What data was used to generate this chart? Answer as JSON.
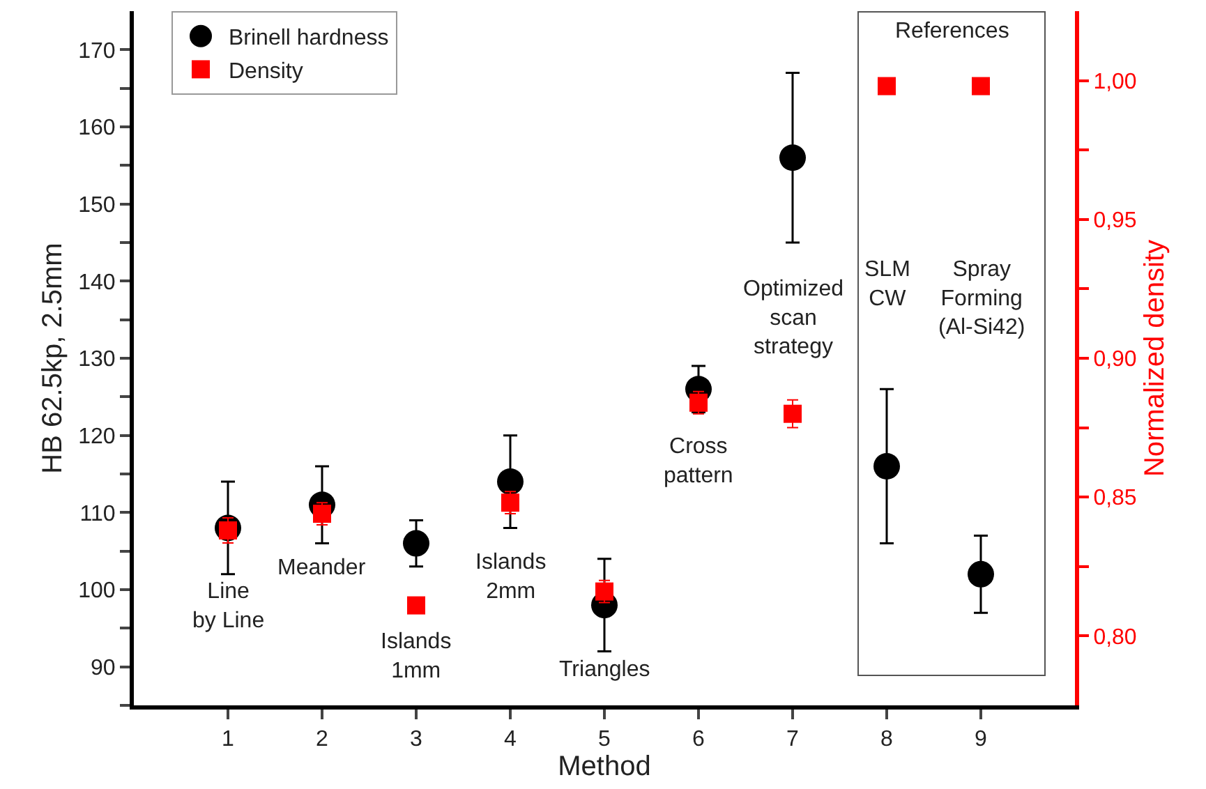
{
  "chart_data": {
    "type": "scatter",
    "xlabel": "Method",
    "ylabel": "HB 62.5kp, 2.5mm",
    "y2label": "Normalized density",
    "x": [
      1,
      2,
      3,
      4,
      5,
      6,
      7,
      8,
      9
    ],
    "series": [
      {
        "name": "Brinell hardness",
        "color": "#000000",
        "marker": "circle",
        "values": [
          108,
          111,
          106,
          114,
          98,
          126,
          156,
          116,
          102
        ],
        "errors": [
          [
            102,
            114
          ],
          [
            106,
            116
          ],
          [
            103,
            109
          ],
          [
            108,
            120
          ],
          [
            92,
            104
          ],
          [
            123,
            129
          ],
          [
            145,
            167
          ],
          [
            106,
            126
          ],
          [
            97,
            107
          ]
        ]
      },
      {
        "name": "Density",
        "color": "#ff0000",
        "marker": "square",
        "axis": "y2",
        "values": [
          0.838,
          0.844,
          0.811,
          0.848,
          0.816,
          0.884,
          0.88,
          0.998,
          0.998
        ],
        "errors": [
          0.0045,
          0.004,
          null,
          0.004,
          0.004,
          0.004,
          0.005,
          null,
          null
        ]
      }
    ],
    "xlim": [
      0,
      10
    ],
    "xticks": [
      1,
      2,
      3,
      4,
      5,
      6,
      7,
      8,
      9
    ],
    "ylim": [
      85,
      175
    ],
    "yticks": [
      {
        "value": 85,
        "label": null
      },
      90,
      {
        "value": 95,
        "label": null
      },
      100,
      {
        "value": 105,
        "label": null
      },
      110,
      {
        "value": 115,
        "label": null
      },
      120,
      {
        "value": 125,
        "label": null
      },
      130,
      {
        "value": 135,
        "label": null
      },
      140,
      {
        "value": 145,
        "label": null
      },
      150,
      {
        "value": 155,
        "label": null
      },
      160,
      {
        "value": 165,
        "label": null
      },
      170
    ],
    "y2lim": [
      0.775,
      1.025
    ],
    "y2ticks": [
      {
        "value": 0.8,
        "label": "0,80"
      },
      {
        "value": 0.825,
        "label": null
      },
      {
        "value": 0.85,
        "label": "0,85"
      },
      {
        "value": 0.875,
        "label": null
      },
      {
        "value": 0.9,
        "label": "0,90"
      },
      {
        "value": 0.925,
        "label": null
      },
      {
        "value": 0.95,
        "label": "0,95"
      },
      {
        "value": 0.975,
        "label": null
      },
      {
        "value": 1.0,
        "label": "1,00"
      }
    ],
    "annotations": [
      "Line\nby Line",
      "Meander",
      "Islands\n1mm",
      "Islands\n2mm",
      "Triangles",
      "Cross\npattern",
      "Optimized\nscan\nstrategy",
      "SLM\nCW",
      "Spray\nForming\n(Al-Si42)",
      "References"
    ],
    "legend": "top left",
    "grid": false
  }
}
